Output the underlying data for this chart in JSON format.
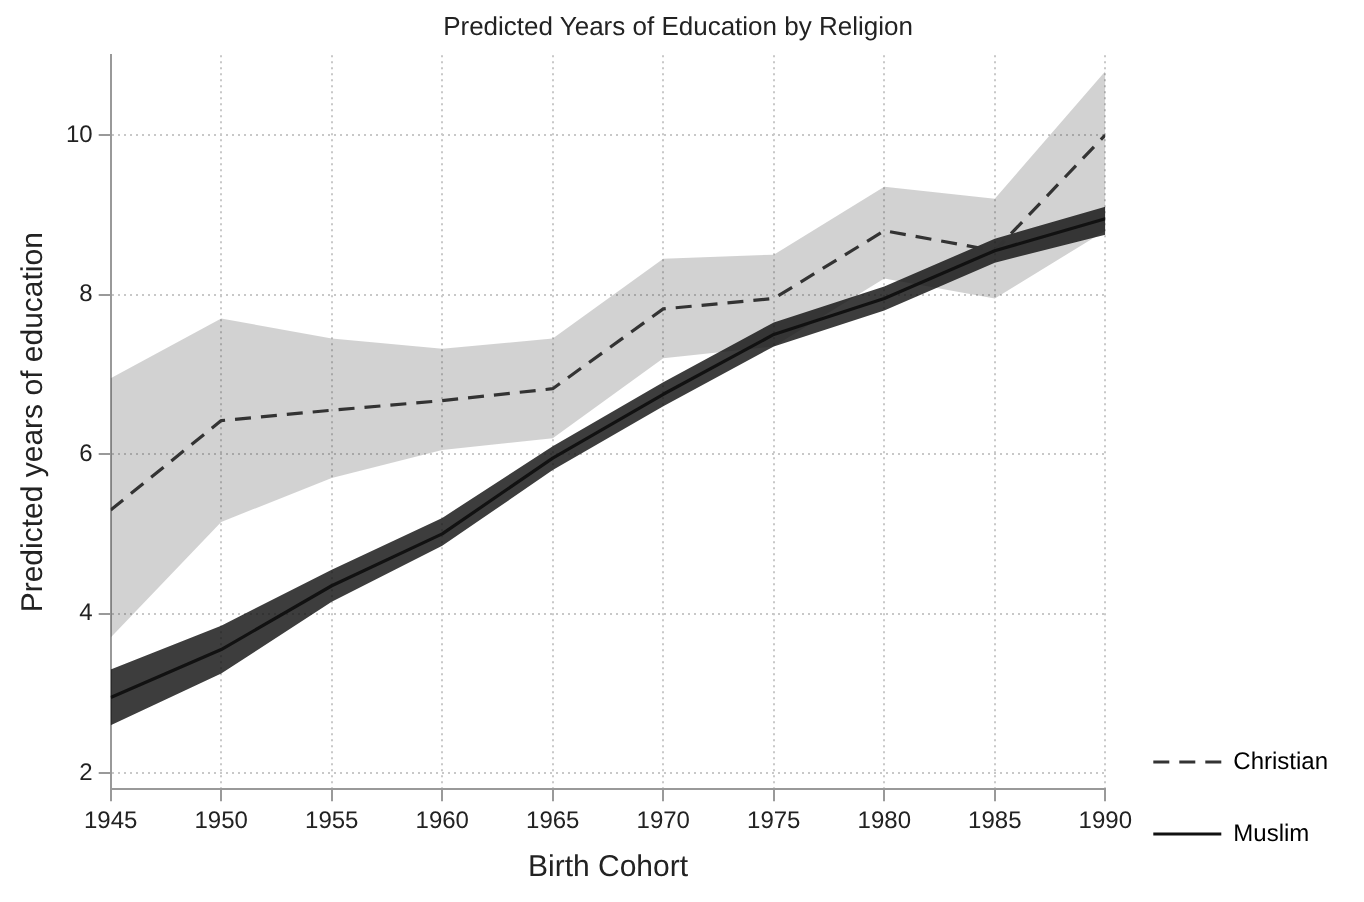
{
  "chart_data": {
    "type": "line",
    "title": "Predicted Years of Education by Religion",
    "xlabel": "Birth Cohort",
    "ylabel": "Predicted years of education",
    "x": [
      1945,
      1950,
      1955,
      1960,
      1965,
      1970,
      1975,
      1980,
      1985,
      1990
    ],
    "series": [
      {
        "name": "Christian",
        "color": "#333333",
        "line_style": "dashed",
        "values": [
          5.3,
          6.42,
          6.55,
          6.67,
          6.82,
          7.82,
          7.95,
          8.8,
          8.55,
          10.0
        ],
        "lower": [
          3.7,
          5.15,
          5.7,
          6.05,
          6.2,
          7.2,
          7.35,
          8.2,
          7.95,
          8.8
        ],
        "upper": [
          6.95,
          7.7,
          7.45,
          7.32,
          7.45,
          8.45,
          8.5,
          9.35,
          9.2,
          10.8
        ]
      },
      {
        "name": "Muslim",
        "color": "#111111",
        "line_style": "solid",
        "values": [
          2.95,
          3.55,
          4.35,
          5.0,
          5.95,
          6.75,
          7.5,
          7.95,
          8.55,
          8.95
        ],
        "lower": [
          2.6,
          3.25,
          4.15,
          4.85,
          5.8,
          6.6,
          7.35,
          7.8,
          8.4,
          8.75
        ],
        "upper": [
          3.3,
          3.85,
          4.55,
          5.2,
          6.1,
          6.9,
          7.65,
          8.1,
          8.7,
          9.1
        ]
      }
    ],
    "xlim": [
      1945,
      1990
    ],
    "xticks": [
      1945,
      1950,
      1955,
      1960,
      1965,
      1970,
      1975,
      1980,
      1985,
      1990
    ],
    "ylim": [
      1.8,
      11
    ],
    "yticks": [
      2,
      4,
      6,
      8,
      10
    ],
    "grid": true,
    "legend": "bottom right",
    "marker": "none"
  }
}
